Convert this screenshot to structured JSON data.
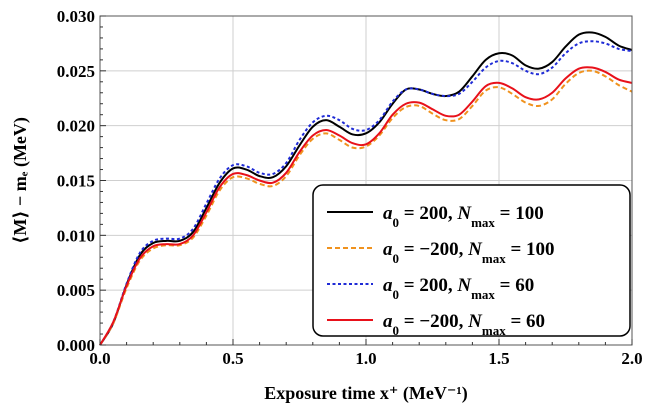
{
  "chart_data": {
    "type": "line",
    "xlabel": "Exposure time x⁺ (MeV⁻¹)",
    "ylabel": "⟨M⟩ − mₑ (MeV)",
    "xlim": [
      0.0,
      2.0
    ],
    "ylim": [
      0.0,
      0.03
    ],
    "x_ticks": [
      "0.0",
      "0.5",
      "1.0",
      "1.5",
      "2.0"
    ],
    "y_ticks": [
      "0.000",
      "0.005",
      "0.010",
      "0.015",
      "0.020",
      "0.025",
      "0.030"
    ],
    "grid": true,
    "legend_position": "lower-right",
    "x": [
      0.0,
      0.05,
      0.1,
      0.15,
      0.2,
      0.25,
      0.3,
      0.35,
      0.4,
      0.45,
      0.5,
      0.55,
      0.6,
      0.65,
      0.7,
      0.75,
      0.8,
      0.85,
      0.9,
      0.95,
      1.0,
      1.05,
      1.1,
      1.15,
      1.2,
      1.25,
      1.3,
      1.35,
      1.4,
      1.45,
      1.5,
      1.55,
      1.6,
      1.65,
      1.7,
      1.75,
      1.8,
      1.85,
      1.9,
      1.95,
      2.0
    ],
    "series": [
      {
        "name_parts": [
          "a",
          "0",
          " = 200, ",
          "N",
          "max",
          " = 100"
        ],
        "color": "#000000",
        "dash": "solid",
        "values": [
          0.0,
          0.002,
          0.0055,
          0.0082,
          0.0093,
          0.0095,
          0.0095,
          0.0103,
          0.0125,
          0.0148,
          0.0161,
          0.016,
          0.0154,
          0.0153,
          0.0163,
          0.0182,
          0.0199,
          0.0205,
          0.0199,
          0.0192,
          0.0193,
          0.0203,
          0.022,
          0.0233,
          0.0233,
          0.0229,
          0.0227,
          0.0231,
          0.0245,
          0.026,
          0.0266,
          0.0264,
          0.0255,
          0.0252,
          0.0258,
          0.0272,
          0.0283,
          0.0285,
          0.0281,
          0.0273,
          0.0269
        ]
      },
      {
        "name_parts": [
          "a",
          "0",
          " = −200, ",
          "N",
          "max",
          " = 100"
        ],
        "color": "#f0921e",
        "dash": "dashed",
        "values": [
          0.0,
          0.002,
          0.0052,
          0.0077,
          0.0088,
          0.0091,
          0.0091,
          0.0098,
          0.0118,
          0.0141,
          0.0153,
          0.0152,
          0.0147,
          0.0145,
          0.0154,
          0.0173,
          0.0188,
          0.0193,
          0.0187,
          0.018,
          0.0181,
          0.0191,
          0.0207,
          0.0217,
          0.0218,
          0.0211,
          0.0205,
          0.0206,
          0.0218,
          0.0232,
          0.0235,
          0.0229,
          0.0221,
          0.0218,
          0.0224,
          0.0238,
          0.0248,
          0.025,
          0.0245,
          0.0237,
          0.0231
        ]
      },
      {
        "name_parts": [
          "a",
          "0",
          " = 200, ",
          "N",
          "max",
          " = 60"
        ],
        "color": "#1f2bd6",
        "dash": "dotted",
        "values": [
          0.0,
          0.0021,
          0.0056,
          0.0084,
          0.0095,
          0.0097,
          0.0097,
          0.0106,
          0.0129,
          0.0152,
          0.0164,
          0.0163,
          0.0157,
          0.0156,
          0.0166,
          0.0187,
          0.0203,
          0.0209,
          0.0205,
          0.0197,
          0.0196,
          0.0205,
          0.0222,
          0.0233,
          0.0233,
          0.0229,
          0.0227,
          0.0229,
          0.024,
          0.0253,
          0.0259,
          0.0257,
          0.025,
          0.0247,
          0.0253,
          0.0266,
          0.0275,
          0.0277,
          0.0275,
          0.027,
          0.0268
        ]
      },
      {
        "name_parts": [
          "a",
          "0",
          " = −200, ",
          "N",
          "max",
          " = 60"
        ],
        "color": "#e8111a",
        "dash": "solid",
        "values": [
          0.0,
          0.0021,
          0.0054,
          0.0079,
          0.009,
          0.0092,
          0.0092,
          0.01,
          0.0121,
          0.0144,
          0.0156,
          0.0155,
          0.015,
          0.0148,
          0.0157,
          0.0176,
          0.0191,
          0.0196,
          0.0191,
          0.0184,
          0.0183,
          0.0193,
          0.021,
          0.022,
          0.0221,
          0.0215,
          0.0209,
          0.021,
          0.0222,
          0.0236,
          0.0239,
          0.0234,
          0.0226,
          0.0224,
          0.023,
          0.0243,
          0.0252,
          0.0253,
          0.0249,
          0.0242,
          0.0239
        ]
      }
    ]
  }
}
